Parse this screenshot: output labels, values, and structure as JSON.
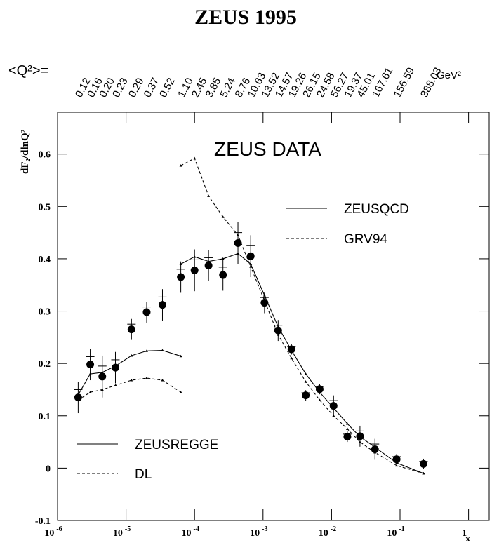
{
  "chart_data": {
    "type": "scatter",
    "title": "ZEUS 1995",
    "annotation": "ZEUS DATA",
    "q2_prefix": "<Q²>=",
    "q2_unit": "GeV²",
    "q2_labels": [
      "0.12",
      "0.16",
      "0.20",
      "0.23",
      "0.29",
      "0.37",
      "0.52",
      "1.10",
      "2.45",
      "3.85",
      "5.24",
      "8.76",
      "10.63",
      "13.52",
      "14.57",
      "19.26",
      "26.15",
      "24.58",
      "56.27",
      "19.37",
      "45.01",
      "167.61",
      "156.59",
      "388.03"
    ],
    "y_label": "dF₂/dlnQ²",
    "x_label": "x",
    "log_x": true,
    "xlim": [
      1e-06,
      2
    ],
    "ylim": [
      -0.1,
      0.68
    ],
    "xticks": [
      {
        "value": 1e-06,
        "label": "10",
        "exponent": "-6"
      },
      {
        "value": 1e-05,
        "label": "10",
        "exponent": "-5"
      },
      {
        "value": 0.0001,
        "label": "10",
        "exponent": "-4"
      },
      {
        "value": 0.001,
        "label": "10",
        "exponent": "-3"
      },
      {
        "value": 0.01,
        "label": "10",
        "exponent": "-2"
      },
      {
        "value": 0.1,
        "label": "10",
        "exponent": "-1"
      },
      1
    ],
    "yticks": [
      -0.1,
      0,
      0.1,
      0.2,
      0.3,
      0.4,
      0.5,
      0.6
    ],
    "points": {
      "x": [
        2e-06,
        3e-06,
        4.5e-06,
        7e-06,
        1.2e-05,
        2e-05,
        3.4e-05,
        6.3e-05,
        0.0001,
        0.00016,
        0.00026,
        0.00043,
        0.00066,
        0.00105,
        0.00166,
        0.0026,
        0.0042,
        0.0067,
        0.0107,
        0.017,
        0.026,
        0.043,
        0.089,
        0.22
      ],
      "values": [
        0.135,
        0.198,
        0.175,
        0.192,
        0.265,
        0.298,
        0.312,
        0.365,
        0.378,
        0.387,
        0.369,
        0.43,
        0.405,
        0.316,
        0.263,
        0.227,
        0.139,
        0.151,
        0.119,
        0.06,
        0.061,
        0.036,
        0.017,
        0.008
      ],
      "errors": [
        0.03,
        0.03,
        0.04,
        0.03,
        0.02,
        0.02,
        0.03,
        0.03,
        0.04,
        0.03,
        0.03,
        0.04,
        0.04,
        0.02,
        0.02,
        0.01,
        0.01,
        0.01,
        0.02,
        0.01,
        0.02,
        0.02,
        0.01,
        0.01
      ]
    },
    "series": [
      {
        "name": "ZEUSQCD",
        "color": "#000000",
        "dash": false,
        "x": [
          6.3e-05,
          0.0001,
          0.00016,
          0.00026,
          0.00043,
          0.00066,
          0.00105,
          0.00166,
          0.0026,
          0.0042,
          0.0067,
          0.0107,
          0.017,
          0.026,
          0.043,
          0.089,
          0.22
        ],
        "values": [
          0.39,
          0.404,
          0.395,
          0.4,
          0.41,
          0.39,
          0.33,
          0.27,
          0.225,
          0.18,
          0.145,
          0.115,
          0.085,
          0.06,
          0.04,
          0.01,
          -0.01
        ]
      },
      {
        "name": "GRV94",
        "color": "#000000",
        "dash": true,
        "x": [
          6.3e-05,
          0.0001,
          0.00016,
          0.00026,
          0.00043,
          0.00066,
          0.00105,
          0.00166,
          0.0026,
          0.0042,
          0.0067,
          0.0107,
          0.017,
          0.026,
          0.043,
          0.089,
          0.22
        ],
        "values": [
          0.578,
          0.592,
          0.52,
          0.48,
          0.445,
          0.385,
          0.32,
          0.255,
          0.21,
          0.165,
          0.13,
          0.1,
          0.075,
          0.05,
          0.03,
          0.005,
          -0.01
        ]
      },
      {
        "name": "ZEUSREGGE",
        "color": "#000000",
        "dash": false,
        "x": [
          2e-06,
          3e-06,
          4.5e-06,
          7e-06,
          1.2e-05,
          2e-05,
          3.4e-05,
          6.3e-05
        ],
        "values": [
          0.14,
          0.18,
          0.183,
          0.195,
          0.215,
          0.224,
          0.225,
          0.214
        ]
      },
      {
        "name": "DL",
        "color": "#000000",
        "dash": true,
        "x": [
          2e-06,
          3e-06,
          4.5e-06,
          7e-06,
          1.2e-05,
          2e-05,
          3.4e-05,
          6.3e-05
        ],
        "values": [
          0.13,
          0.145,
          0.15,
          0.158,
          0.168,
          0.172,
          0.168,
          0.145
        ]
      }
    ]
  }
}
